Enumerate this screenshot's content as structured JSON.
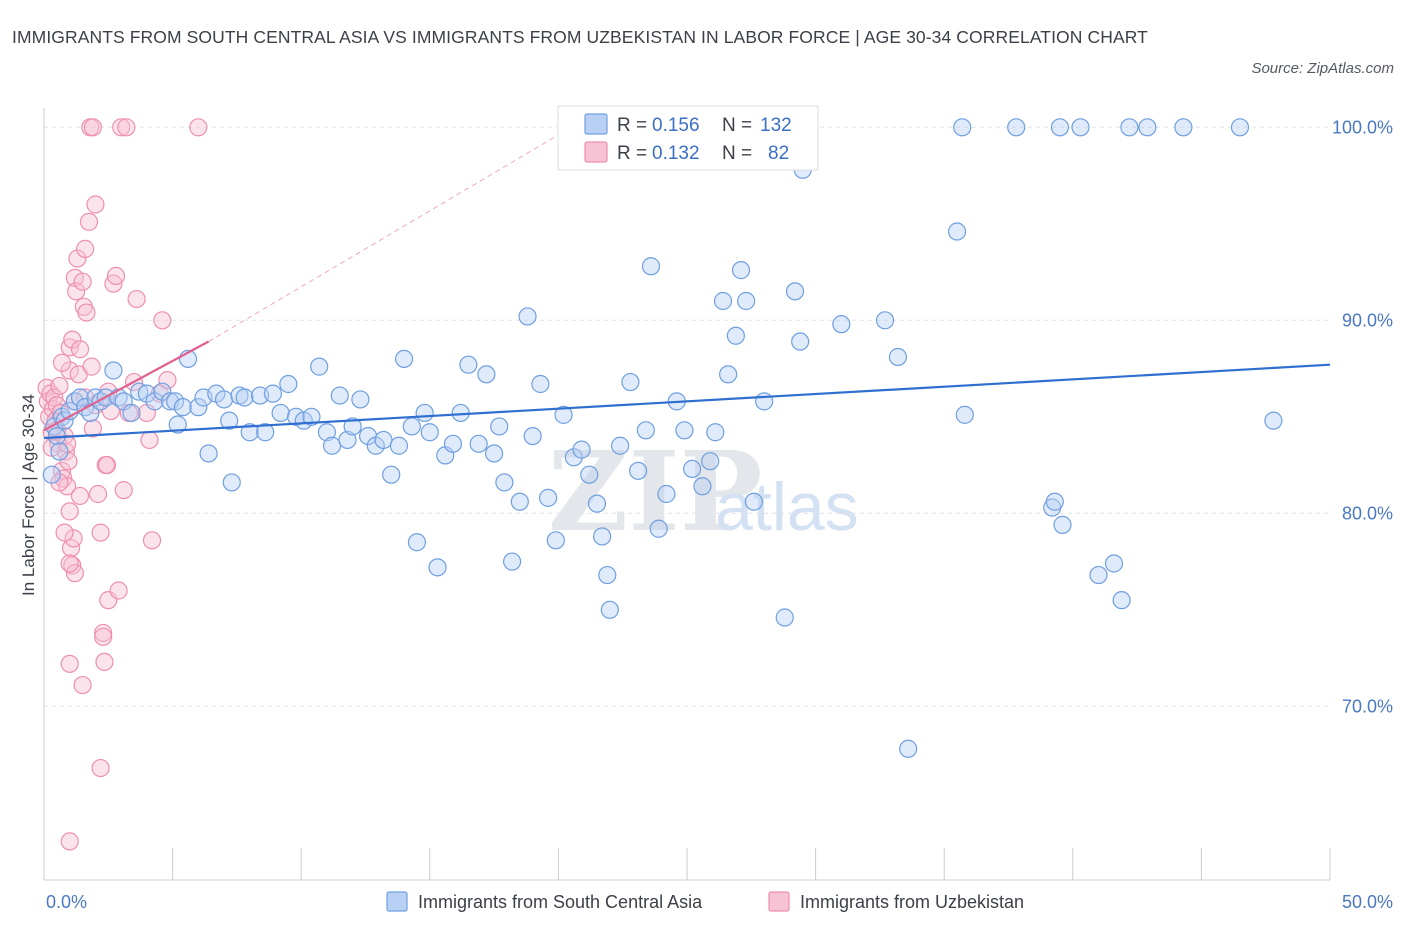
{
  "title": "IMMIGRANTS FROM SOUTH CENTRAL ASIA VS IMMIGRANTS FROM UZBEKISTAN IN LABOR FORCE | AGE 30-34 CORRELATION CHART",
  "source": "Source: ZipAtlas.com",
  "watermark": {
    "zip": "ZIP",
    "atlas": "atlas"
  },
  "colors": {
    "blue": "#6f9fe0",
    "blue_fill": "#b8d0f3",
    "blue_line": "#2f6fd0",
    "pink": "#ee8fb0",
    "pink_fill": "#f7c2d4",
    "pink_line": "#e0608e"
  },
  "legend": {
    "rows": [
      {
        "r_label": "R =",
        "r_value": "0.156",
        "n_label": "N =",
        "n_value": "132",
        "series": "blue"
      },
      {
        "r_label": "R =",
        "r_value": "0.132",
        "n_label": "N =",
        "n_value": "82",
        "series": "pink"
      }
    ]
  },
  "chart_data": {
    "type": "scatter",
    "title": "IMMIGRANTS FROM SOUTH CENTRAL ASIA VS IMMIGRANTS FROM UZBEKISTAN IN LABOR FORCE | AGE 30-34 CORRELATION CHART",
    "xlabel": "",
    "ylabel": "In Labor Force | Age 30-34",
    "xlim": [
      0,
      50
    ],
    "ylim": [
      61,
      101
    ],
    "x_tick_labels": [
      {
        "value": 0,
        "label": "0.0%"
      },
      {
        "value": 50,
        "label": "50.0%"
      }
    ],
    "y_tick_labels": [
      {
        "value": 100,
        "label": "100.0%"
      },
      {
        "value": 90,
        "label": "90.0%"
      },
      {
        "value": 80,
        "label": "80.0%"
      },
      {
        "value": 70,
        "label": "70.0%"
      }
    ],
    "grid": true,
    "legend_position": "top-center",
    "series": [
      {
        "name": "Immigrants from South Central Asia",
        "color": "blue",
        "R": 0.156,
        "N": 132,
        "trend": {
          "x": [
            0,
            50
          ],
          "y": [
            83.9,
            87.7
          ],
          "dashed": false
        },
        "points": [
          [
            0.3,
            82.0
          ],
          [
            0.4,
            84.5
          ],
          [
            0.5,
            84.0
          ],
          [
            0.6,
            83.2
          ],
          [
            0.7,
            85.0
          ],
          [
            0.8,
            84.8
          ],
          [
            1.0,
            85.3
          ],
          [
            1.2,
            85.8
          ],
          [
            1.4,
            86.0
          ],
          [
            1.6,
            85.5
          ],
          [
            1.8,
            85.2
          ],
          [
            2.0,
            86.0
          ],
          [
            2.2,
            85.8
          ],
          [
            2.4,
            86.0
          ],
          [
            2.7,
            87.4
          ],
          [
            2.9,
            86.0
          ],
          [
            3.1,
            85.8
          ],
          [
            3.4,
            85.2
          ],
          [
            3.7,
            86.3
          ],
          [
            4.0,
            86.2
          ],
          [
            4.3,
            85.8
          ],
          [
            4.6,
            86.3
          ],
          [
            4.9,
            85.8
          ],
          [
            5.1,
            85.8
          ],
          [
            5.2,
            84.6
          ],
          [
            5.4,
            85.5
          ],
          [
            5.6,
            88.0
          ],
          [
            6.0,
            85.5
          ],
          [
            6.2,
            86.0
          ],
          [
            6.4,
            83.1
          ],
          [
            6.7,
            86.2
          ],
          [
            7.0,
            85.9
          ],
          [
            7.2,
            84.8
          ],
          [
            7.3,
            81.6
          ],
          [
            7.6,
            86.1
          ],
          [
            7.8,
            86.0
          ],
          [
            8.0,
            84.2
          ],
          [
            8.4,
            86.1
          ],
          [
            8.6,
            84.2
          ],
          [
            8.9,
            86.2
          ],
          [
            9.2,
            85.2
          ],
          [
            9.5,
            86.7
          ],
          [
            9.8,
            85.0
          ],
          [
            10.1,
            84.8
          ],
          [
            10.4,
            85.0
          ],
          [
            10.7,
            87.6
          ],
          [
            11.0,
            84.2
          ],
          [
            11.2,
            83.5
          ],
          [
            11.5,
            86.1
          ],
          [
            11.8,
            83.8
          ],
          [
            12.0,
            84.5
          ],
          [
            12.3,
            85.9
          ],
          [
            12.6,
            84.0
          ],
          [
            12.9,
            83.5
          ],
          [
            13.2,
            83.8
          ],
          [
            13.5,
            82.0
          ],
          [
            13.8,
            83.5
          ],
          [
            14.0,
            88.0
          ],
          [
            14.3,
            84.5
          ],
          [
            14.5,
            78.5
          ],
          [
            14.8,
            85.2
          ],
          [
            15.0,
            84.2
          ],
          [
            15.3,
            77.2
          ],
          [
            15.6,
            83.0
          ],
          [
            15.9,
            83.6
          ],
          [
            16.2,
            85.2
          ],
          [
            16.5,
            87.7
          ],
          [
            16.9,
            83.6
          ],
          [
            17.2,
            87.2
          ],
          [
            17.5,
            83.1
          ],
          [
            17.7,
            84.5
          ],
          [
            17.9,
            81.6
          ],
          [
            18.2,
            77.5
          ],
          [
            18.5,
            80.6
          ],
          [
            18.8,
            90.2
          ],
          [
            19.0,
            84.0
          ],
          [
            19.3,
            86.7
          ],
          [
            19.6,
            80.8
          ],
          [
            19.9,
            78.6
          ],
          [
            20.2,
            85.1
          ],
          [
            20.6,
            82.9
          ],
          [
            20.9,
            83.3
          ],
          [
            21.2,
            82.0
          ],
          [
            21.5,
            80.5
          ],
          [
            21.7,
            78.8
          ],
          [
            21.9,
            76.8
          ],
          [
            22.0,
            75.0
          ],
          [
            22.4,
            83.5
          ],
          [
            22.8,
            86.8
          ],
          [
            23.1,
            82.2
          ],
          [
            23.4,
            84.3
          ],
          [
            23.6,
            92.8
          ],
          [
            23.9,
            79.2
          ],
          [
            24.2,
            81.0
          ],
          [
            24.6,
            85.8
          ],
          [
            24.9,
            84.3
          ],
          [
            25.2,
            82.3
          ],
          [
            25.6,
            81.4
          ],
          [
            25.9,
            82.7
          ],
          [
            26.1,
            84.2
          ],
          [
            26.4,
            91.0
          ],
          [
            26.6,
            87.2
          ],
          [
            27.1,
            92.6
          ],
          [
            27.3,
            91.0
          ],
          [
            27.6,
            80.6
          ],
          [
            28.0,
            85.8
          ],
          [
            28.8,
            74.6
          ],
          [
            29.2,
            91.5
          ],
          [
            29.4,
            88.9
          ],
          [
            31.0,
            89.8
          ],
          [
            32.7,
            90.0
          ],
          [
            33.2,
            88.1
          ],
          [
            33.6,
            67.8
          ],
          [
            35.7,
            100.0
          ],
          [
            35.5,
            94.6
          ],
          [
            35.8,
            85.1
          ],
          [
            37.8,
            100.0
          ],
          [
            39.2,
            80.3
          ],
          [
            39.3,
            80.6
          ],
          [
            39.6,
            79.4
          ],
          [
            39.5,
            100.0
          ],
          [
            40.3,
            100.0
          ],
          [
            41.0,
            76.8
          ],
          [
            41.6,
            77.4
          ],
          [
            41.9,
            75.5
          ],
          [
            42.2,
            100.0
          ],
          [
            42.9,
            100.0
          ],
          [
            44.3,
            100.0
          ],
          [
            46.5,
            100.0
          ],
          [
            47.8,
            84.8
          ],
          [
            29.5,
            97.8
          ],
          [
            26.9,
            89.2
          ]
        ]
      },
      {
        "name": "Immigrants from Uzbekistan",
        "color": "pink",
        "R": 0.132,
        "N": 82,
        "trend": {
          "x": [
            0,
            6.4
          ],
          "y": [
            84.3,
            88.9
          ],
          "dashed": false,
          "extension": {
            "x": [
              6.4,
              20.5
            ],
            "y": [
              88.9,
              100.0
            ],
            "dashed": true
          }
        },
        "points": [
          [
            0.1,
            86.5
          ],
          [
            0.15,
            85.8
          ],
          [
            0.2,
            85.0
          ],
          [
            0.25,
            86.2
          ],
          [
            0.3,
            84.2
          ],
          [
            0.35,
            85.4
          ],
          [
            0.4,
            86.0
          ],
          [
            0.45,
            84.8
          ],
          [
            0.5,
            85.6
          ],
          [
            0.55,
            83.6
          ],
          [
            0.6,
            86.6
          ],
          [
            0.65,
            85.2
          ],
          [
            0.7,
            82.2
          ],
          [
            0.75,
            81.8
          ],
          [
            0.8,
            84.0
          ],
          [
            0.85,
            83.2
          ],
          [
            0.9,
            81.4
          ],
          [
            0.95,
            82.7
          ],
          [
            1.0,
            80.1
          ],
          [
            1.05,
            78.2
          ],
          [
            1.1,
            77.3
          ],
          [
            1.15,
            78.7
          ],
          [
            1.2,
            76.9
          ],
          [
            1.0,
            88.6
          ],
          [
            1.0,
            87.4
          ],
          [
            1.1,
            89.0
          ],
          [
            1.2,
            92.2
          ],
          [
            1.25,
            91.5
          ],
          [
            1.3,
            93.2
          ],
          [
            1.35,
            87.2
          ],
          [
            1.4,
            88.5
          ],
          [
            1.5,
            92.0
          ],
          [
            1.55,
            90.7
          ],
          [
            1.6,
            93.7
          ],
          [
            1.65,
            90.4
          ],
          [
            1.75,
            95.1
          ],
          [
            1.8,
            100.0
          ],
          [
            1.85,
            87.6
          ],
          [
            1.9,
            100.0
          ],
          [
            2.0,
            96.0
          ],
          [
            2.1,
            81.0
          ],
          [
            2.2,
            79.0
          ],
          [
            2.3,
            73.8
          ],
          [
            2.35,
            72.3
          ],
          [
            2.4,
            82.5
          ],
          [
            2.45,
            82.5
          ],
          [
            2.5,
            75.5
          ],
          [
            2.6,
            85.3
          ],
          [
            2.7,
            91.9
          ],
          [
            2.8,
            92.3
          ],
          [
            2.9,
            76.0
          ],
          [
            3.0,
            100.0
          ],
          [
            3.1,
            81.2
          ],
          [
            3.2,
            100.0
          ],
          [
            3.3,
            85.2
          ],
          [
            3.6,
            91.1
          ],
          [
            4.0,
            85.2
          ],
          [
            4.1,
            83.8
          ],
          [
            4.2,
            78.6
          ],
          [
            4.5,
            86.2
          ],
          [
            4.6,
            90.0
          ],
          [
            4.8,
            86.9
          ],
          [
            6.0,
            100.0
          ],
          [
            1.0,
            63.0
          ],
          [
            2.2,
            66.8
          ],
          [
            1.5,
            71.1
          ],
          [
            1.0,
            72.2
          ],
          [
            2.3,
            73.6
          ],
          [
            1.0,
            77.4
          ],
          [
            0.8,
            79.0
          ],
          [
            1.4,
            80.9
          ],
          [
            0.6,
            81.6
          ],
          [
            0.9,
            83.6
          ],
          [
            0.5,
            84.3
          ],
          [
            1.2,
            85.8
          ],
          [
            1.6,
            86.0
          ],
          [
            2.0,
            85.6
          ],
          [
            2.5,
            86.3
          ],
          [
            0.3,
            83.4
          ],
          [
            0.7,
            87.8
          ],
          [
            1.9,
            84.4
          ],
          [
            3.5,
            86.8
          ]
        ]
      }
    ]
  },
  "bottom_legend": [
    {
      "label": "Immigrants from South Central Asia",
      "color": "blue"
    },
    {
      "label": "Immigrants from Uzbekistan",
      "color": "pink"
    }
  ]
}
